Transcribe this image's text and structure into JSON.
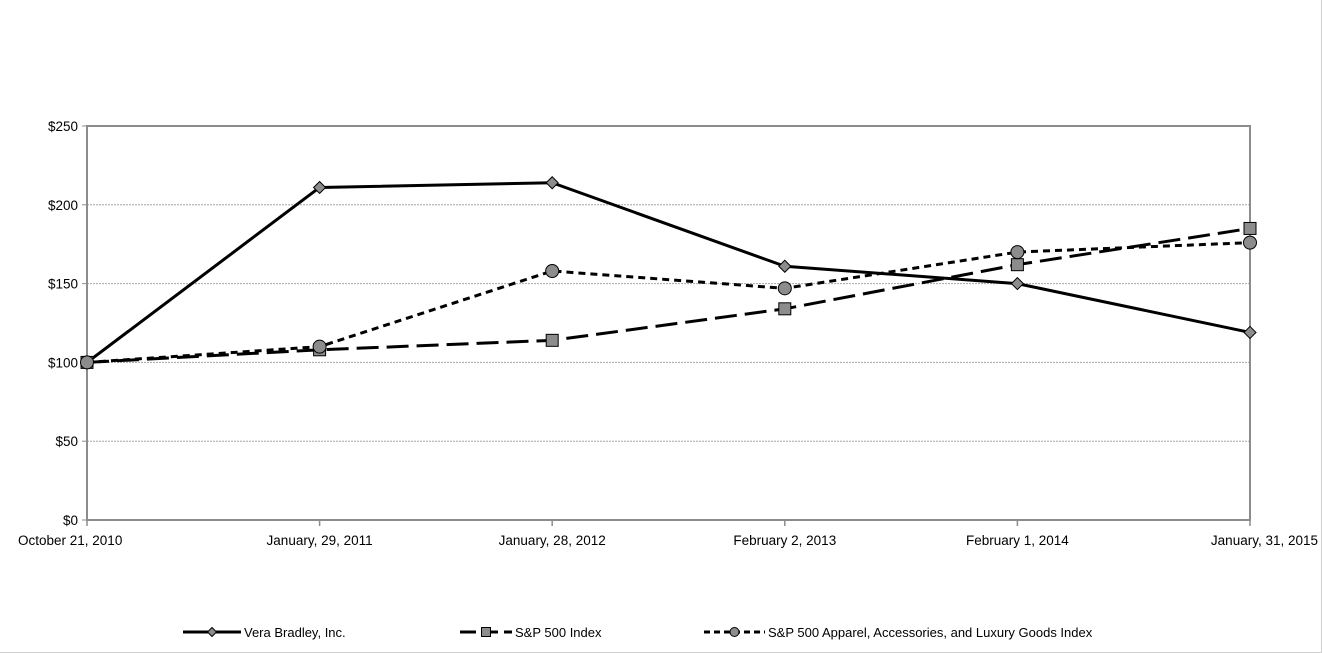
{
  "chart_data": {
    "type": "line",
    "title": "",
    "xlabel": "",
    "ylabel": "",
    "categories": [
      "October 21, 2010",
      "January, 29, 2011",
      "January, 28, 2012",
      "February 2, 2013",
      "February 1, 2014",
      "January, 31, 2015"
    ],
    "ylim": [
      0,
      250
    ],
    "yticks": [
      0,
      50,
      100,
      150,
      200,
      250
    ],
    "ytick_labels": [
      "$0",
      "$50",
      "$100",
      "$150",
      "$200",
      "$250"
    ],
    "grid": true,
    "legend_position": "bottom",
    "series": [
      {
        "name": "Vera Bradley, Inc.",
        "values": [
          100,
          211,
          214,
          161,
          150,
          119
        ],
        "marker": "diamond",
        "line_style": "solid",
        "color": "#000000",
        "marker_color": "#8c8c8c"
      },
      {
        "name": "S&P 500 Index",
        "values": [
          100,
          108,
          114,
          134,
          162,
          185
        ],
        "marker": "square",
        "line_style": "long-dash",
        "color": "#000000",
        "marker_color": "#8c8c8c"
      },
      {
        "name": "S&P 500 Apparel, Accessories, and Luxury Goods Index",
        "values": [
          100,
          110,
          158,
          147,
          170,
          176
        ],
        "marker": "circle",
        "line_style": "short-dash",
        "color": "#000000",
        "marker_color": "#8c8c8c"
      }
    ]
  }
}
